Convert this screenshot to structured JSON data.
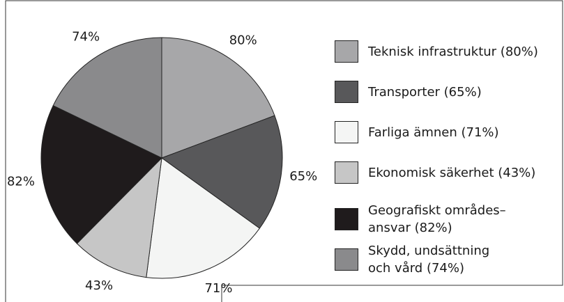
{
  "chart_data": {
    "type": "pie",
    "categories": [
      "Teknisk infrastruktur (80%)",
      "Transporter (65%)",
      "Farliga ämnen (71%)",
      "Ekonomisk säkerhet (43%)",
      "Geografiskt områdes–\nansvar (82%)",
      "Skydd, undsättning\noch vård (74%)"
    ],
    "values": [
      80,
      65,
      71,
      43,
      82,
      74
    ],
    "value_labels": [
      "80%",
      "65%",
      "71%",
      "43%",
      "82%",
      "74%"
    ],
    "colors": [
      "#a7a7a9",
      "#58585a",
      "#f4f5f4",
      "#c6c6c6",
      "#1f1b1c",
      "#8a8a8c"
    ]
  }
}
